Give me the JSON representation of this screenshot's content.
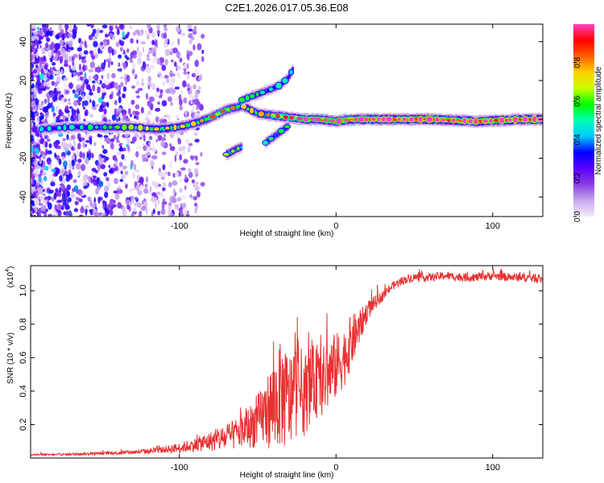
{
  "title": "C2E1.2026.017.05.36.E08",
  "chart_data": [
    {
      "type": "heatmap",
      "xlabel": "Height of straight line (km)",
      "ylabel": "Frequency (Hz)",
      "xlim": [
        -195,
        132
      ],
      "ylim": [
        -50,
        49
      ],
      "xticks": [
        -100,
        0,
        100
      ],
      "xtick_labels": [
        "-100",
        "0",
        "100"
      ],
      "yticks": [
        -40,
        -20,
        0,
        20,
        40
      ],
      "ytick_labels": [
        "-40",
        "-20",
        "0",
        "20",
        "40"
      ],
      "colorbar": {
        "label": "Normalized spectral amplitude",
        "range": [
          0,
          1
        ],
        "ticks": [
          0.0,
          0.2,
          0.4,
          0.6,
          0.8
        ],
        "tick_labels": [
          "0.0",
          "0.2",
          "0.4",
          "0.6",
          "0.8"
        ],
        "colors": [
          "#f4ecfb",
          "#c9a8ee",
          "#8a3fe3",
          "#5a00ff",
          "#0000ff",
          "#00c8ff",
          "#00ffb0",
          "#00ff00",
          "#c8ff00",
          "#ffd000",
          "#ff6000",
          "#ff0000",
          "#ff40c0"
        ]
      },
      "features": [
        {
          "name": "main-ridge",
          "x": [
            -188,
            -170,
            -150,
            -130,
            -115,
            -100,
            -90,
            -80,
            -70,
            -60,
            -50,
            -40,
            -30,
            -20,
            -10,
            0,
            10,
            30,
            60,
            90,
            120,
            132
          ],
          "y": [
            -5,
            -4,
            -4,
            -4,
            -5,
            -4,
            -2,
            1,
            5,
            7,
            3,
            2,
            1,
            0,
            0,
            -1,
            0,
            0,
            0,
            -1,
            0,
            0
          ],
          "amplitude": [
            0.3,
            0.35,
            0.4,
            0.5,
            0.6,
            0.6,
            0.6,
            0.7,
            0.7,
            0.6,
            0.6,
            0.7,
            0.8,
            0.85,
            0.9,
            0.9,
            0.9,
            0.95,
            0.95,
            0.95,
            0.95,
            0.95
          ]
        },
        {
          "name": "upper-branch",
          "x": [
            -60,
            -50,
            -40,
            -35,
            -30,
            -27
          ],
          "y": [
            10,
            13,
            16,
            18,
            22,
            27
          ],
          "amplitude": [
            0.4,
            0.4,
            0.35,
            0.35,
            0.3,
            0.25
          ]
        },
        {
          "name": "lower-branch",
          "x": [
            -45,
            -40,
            -35,
            -30
          ],
          "y": [
            -12,
            -9,
            -6,
            -3
          ],
          "amplitude": [
            0.35,
            0.4,
            0.4,
            0.45
          ]
        },
        {
          "name": "lower-island",
          "x": [
            -70,
            -65,
            -60
          ],
          "y": [
            -18,
            -16,
            -14
          ],
          "amplitude": [
            0.5,
            0.5,
            0.45
          ]
        }
      ]
    },
    {
      "type": "line",
      "xlabel": "Height of straight line (km)",
      "ylabel": "SNR (10 * v/v)",
      "y_multiplier_label": "(x10",
      "y_multiplier_exp": "4",
      "xlim": [
        -195,
        132
      ],
      "ylim": [
        0,
        1.15
      ],
      "xticks": [
        -100,
        0,
        100
      ],
      "xtick_labels": [
        "-100",
        "0",
        "100"
      ],
      "yticks": [
        0.2,
        0.4,
        0.6,
        0.8,
        1.0
      ],
      "ytick_labels": [
        "0.2",
        "0.4",
        "0.6",
        "0.8",
        "1.0"
      ],
      "color": "#e83030",
      "series": [
        {
          "name": "SNR",
          "x": [
            -195,
            -180,
            -160,
            -140,
            -120,
            -110,
            -100,
            -90,
            -80,
            -70,
            -60,
            -50,
            -45,
            -40,
            -35,
            -30,
            -25,
            -20,
            -15,
            -10,
            -5,
            0,
            5,
            10,
            15,
            20,
            25,
            30,
            35,
            40,
            45,
            50,
            60,
            70,
            80,
            90,
            100,
            110,
            120,
            132
          ],
          "values": [
            0.02,
            0.02,
            0.025,
            0.03,
            0.04,
            0.05,
            0.06,
            0.08,
            0.1,
            0.12,
            0.16,
            0.22,
            0.27,
            0.32,
            0.38,
            0.33,
            0.42,
            0.38,
            0.46,
            0.44,
            0.5,
            0.55,
            0.6,
            0.7,
            0.78,
            0.88,
            0.93,
            0.97,
            1.02,
            1.05,
            1.07,
            1.08,
            1.08,
            1.09,
            1.08,
            1.08,
            1.09,
            1.08,
            1.08,
            1.07
          ],
          "noise_amplitude": [
            0.005,
            0.005,
            0.008,
            0.01,
            0.015,
            0.02,
            0.03,
            0.04,
            0.06,
            0.08,
            0.1,
            0.16,
            0.2,
            0.28,
            0.32,
            0.3,
            0.28,
            0.25,
            0.22,
            0.2,
            0.22,
            0.2,
            0.18,
            0.16,
            0.1,
            0.06,
            0.04,
            0.03,
            0.025,
            0.025,
            0.025,
            0.025,
            0.025,
            0.025,
            0.025,
            0.025,
            0.025,
            0.025,
            0.025,
            0.025
          ]
        }
      ]
    }
  ]
}
